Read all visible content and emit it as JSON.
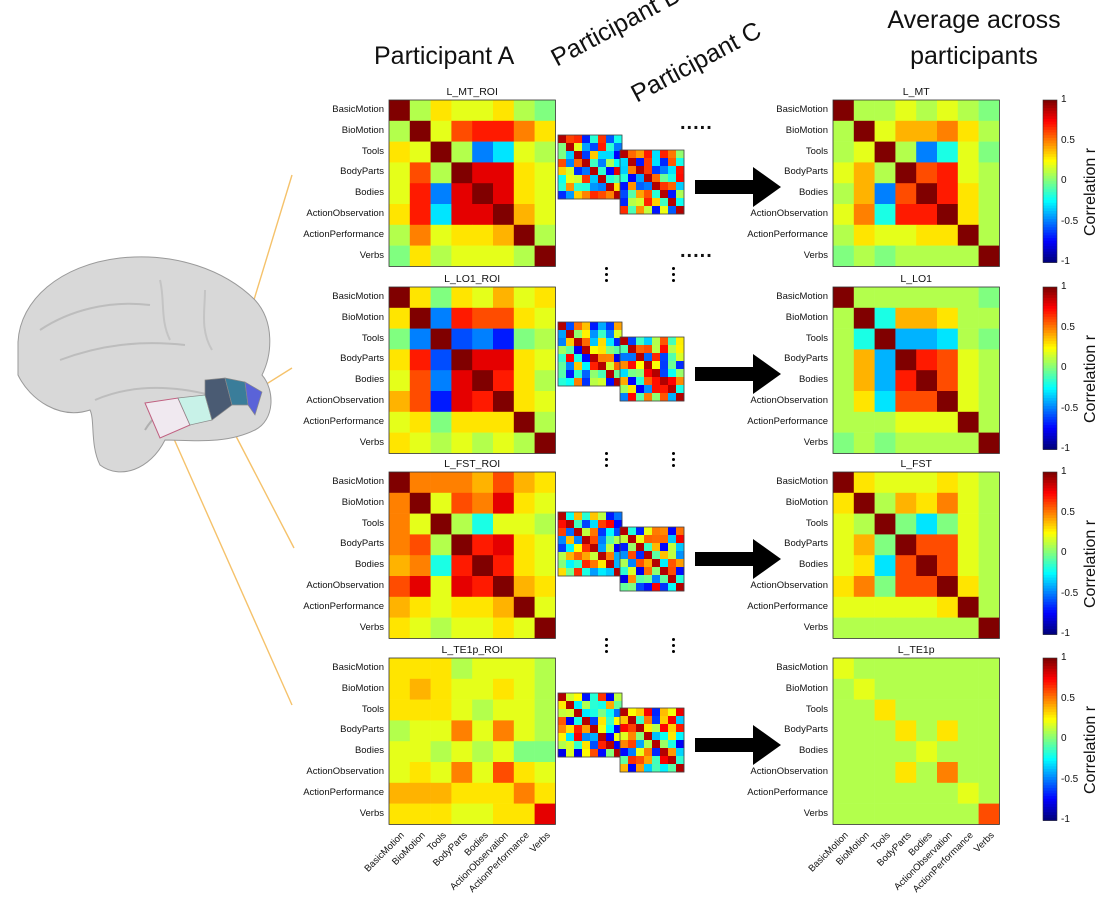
{
  "headers": {
    "participant_a": "Participant A",
    "participant_b": "Participant B",
    "participant_c": "Participant C",
    "average_line1": "Average across",
    "average_line2": "participants",
    "dots": "....."
  },
  "conditions": [
    "BasicMotion",
    "BioMotion",
    "Tools",
    "BodyParts",
    "Bodies",
    "ActionObservation",
    "ActionPerformance",
    "Verbs"
  ],
  "colorbar": {
    "label": "Correlation r",
    "ticks": [
      "1",
      "0.5",
      "0",
      "-0.5",
      "-1"
    ]
  },
  "colors": {
    "arrow": "#000000",
    "roi_line": "#f5c26b",
    "brain": "#d9d9d9"
  },
  "rows": [
    {
      "roi_title": "L_MT_ROI",
      "avg_title": "L_MT",
      "participant_a": [
        [
          1.0,
          0.1,
          0.3,
          0.2,
          0.2,
          0.3,
          0.1,
          0.0
        ],
        [
          0.1,
          1.0,
          0.2,
          0.6,
          0.7,
          0.7,
          0.5,
          0.3
        ],
        [
          0.3,
          0.2,
          1.0,
          0.1,
          -0.5,
          -0.3,
          0.2,
          0.1
        ],
        [
          0.2,
          0.6,
          0.1,
          1.0,
          0.8,
          0.8,
          0.3,
          0.2
        ],
        [
          0.2,
          0.7,
          -0.5,
          0.8,
          1.0,
          0.8,
          0.3,
          0.2
        ],
        [
          0.3,
          0.7,
          -0.3,
          0.8,
          0.8,
          1.0,
          0.4,
          0.2
        ],
        [
          0.1,
          0.5,
          0.2,
          0.3,
          0.3,
          0.4,
          1.0,
          0.1
        ],
        [
          0.0,
          0.3,
          0.1,
          0.2,
          0.2,
          0.2,
          0.1,
          1.0
        ]
      ],
      "average": [
        [
          1.0,
          0.1,
          0.1,
          0.2,
          0.1,
          0.2,
          0.1,
          0.0
        ],
        [
          0.1,
          1.0,
          0.2,
          0.4,
          0.4,
          0.5,
          0.3,
          0.1
        ],
        [
          0.1,
          0.2,
          1.0,
          0.1,
          -0.5,
          -0.2,
          0.2,
          0.0
        ],
        [
          0.2,
          0.4,
          0.1,
          1.0,
          0.6,
          0.7,
          0.2,
          0.1
        ],
        [
          0.1,
          0.4,
          -0.5,
          0.6,
          1.0,
          0.7,
          0.3,
          0.1
        ],
        [
          0.2,
          0.5,
          -0.2,
          0.7,
          0.7,
          1.0,
          0.3,
          0.1
        ],
        [
          0.1,
          0.3,
          0.2,
          0.2,
          0.3,
          0.3,
          1.0,
          0.1
        ],
        [
          0.0,
          0.1,
          0.0,
          0.1,
          0.1,
          0.1,
          0.1,
          1.0
        ]
      ]
    },
    {
      "roi_title": "L_LO1_ROI",
      "avg_title": "L_LO1",
      "participant_a": [
        [
          1.0,
          0.3,
          0.0,
          0.3,
          0.2,
          0.4,
          0.2,
          0.3
        ],
        [
          0.3,
          1.0,
          -0.5,
          0.7,
          0.6,
          0.6,
          0.3,
          0.2
        ],
        [
          0.0,
          -0.5,
          1.0,
          -0.6,
          -0.5,
          -0.7,
          0.0,
          0.1
        ],
        [
          0.3,
          0.7,
          -0.6,
          1.0,
          0.8,
          0.8,
          0.3,
          0.2
        ],
        [
          0.2,
          0.6,
          -0.5,
          0.8,
          1.0,
          0.7,
          0.3,
          0.1
        ],
        [
          0.4,
          0.6,
          -0.7,
          0.8,
          0.7,
          1.0,
          0.3,
          0.2
        ],
        [
          0.2,
          0.3,
          0.0,
          0.3,
          0.3,
          0.3,
          1.0,
          0.1
        ],
        [
          0.3,
          0.2,
          0.1,
          0.2,
          0.1,
          0.2,
          0.1,
          1.0
        ]
      ],
      "average": [
        [
          1.0,
          0.1,
          0.1,
          0.1,
          0.1,
          0.1,
          0.1,
          0.0
        ],
        [
          0.1,
          1.0,
          -0.2,
          0.4,
          0.4,
          0.3,
          0.1,
          0.1
        ],
        [
          0.1,
          -0.2,
          1.0,
          -0.4,
          -0.4,
          -0.3,
          0.1,
          0.0
        ],
        [
          0.1,
          0.4,
          -0.4,
          1.0,
          0.7,
          0.6,
          0.2,
          0.1
        ],
        [
          0.1,
          0.4,
          -0.4,
          0.7,
          1.0,
          0.6,
          0.2,
          0.1
        ],
        [
          0.1,
          0.3,
          -0.3,
          0.6,
          0.6,
          1.0,
          0.2,
          0.1
        ],
        [
          0.1,
          0.1,
          0.1,
          0.2,
          0.2,
          0.2,
          1.0,
          0.1
        ],
        [
          0.0,
          0.1,
          0.0,
          0.1,
          0.1,
          0.1,
          0.1,
          1.0
        ]
      ]
    },
    {
      "roi_title": "L_FST_ROI",
      "avg_title": "L_FST",
      "participant_a": [
        [
          1.0,
          0.5,
          0.5,
          0.5,
          0.4,
          0.6,
          0.4,
          0.3
        ],
        [
          0.5,
          1.0,
          0.2,
          0.6,
          0.5,
          0.8,
          0.3,
          0.2
        ],
        [
          0.5,
          0.2,
          1.0,
          0.1,
          -0.2,
          0.2,
          0.2,
          0.1
        ],
        [
          0.5,
          0.6,
          0.1,
          1.0,
          0.7,
          0.8,
          0.3,
          0.2
        ],
        [
          0.4,
          0.5,
          -0.2,
          0.7,
          1.0,
          0.7,
          0.3,
          0.2
        ],
        [
          0.6,
          0.8,
          0.2,
          0.8,
          0.7,
          1.0,
          0.4,
          0.3
        ],
        [
          0.4,
          0.3,
          0.2,
          0.3,
          0.3,
          0.4,
          1.0,
          0.2
        ],
        [
          0.3,
          0.2,
          0.1,
          0.2,
          0.2,
          0.3,
          0.2,
          1.0
        ]
      ],
      "average": [
        [
          1.0,
          0.3,
          0.2,
          0.2,
          0.2,
          0.3,
          0.2,
          0.1
        ],
        [
          0.3,
          1.0,
          0.1,
          0.4,
          0.3,
          0.5,
          0.2,
          0.1
        ],
        [
          0.2,
          0.1,
          1.0,
          0.0,
          -0.3,
          0.0,
          0.2,
          0.1
        ],
        [
          0.2,
          0.4,
          0.0,
          1.0,
          0.6,
          0.6,
          0.2,
          0.1
        ],
        [
          0.2,
          0.3,
          -0.3,
          0.6,
          1.0,
          0.6,
          0.2,
          0.1
        ],
        [
          0.3,
          0.5,
          0.0,
          0.6,
          0.6,
          1.0,
          0.3,
          0.1
        ],
        [
          0.2,
          0.2,
          0.2,
          0.2,
          0.2,
          0.3,
          1.0,
          0.1
        ],
        [
          0.1,
          0.1,
          0.1,
          0.1,
          0.1,
          0.1,
          0.1,
          1.0
        ]
      ]
    },
    {
      "roi_title": "L_TE1p_ROI",
      "avg_title": "L_TE1p",
      "participant_a": [
        [
          0.3,
          0.3,
          0.3,
          0.1,
          0.2,
          0.2,
          0.2,
          0.1
        ],
        [
          0.3,
          0.4,
          0.3,
          0.2,
          0.2,
          0.3,
          0.2,
          0.1
        ],
        [
          0.3,
          0.3,
          0.3,
          0.2,
          0.1,
          0.2,
          0.2,
          0.1
        ],
        [
          0.1,
          0.2,
          0.2,
          0.5,
          0.2,
          0.5,
          0.2,
          0.1
        ],
        [
          0.2,
          0.2,
          0.1,
          0.2,
          0.1,
          0.2,
          0.0,
          0.0
        ],
        [
          0.2,
          0.3,
          0.2,
          0.5,
          0.2,
          0.6,
          0.3,
          0.2
        ],
        [
          0.4,
          0.4,
          0.4,
          0.3,
          0.3,
          0.3,
          0.5,
          0.3
        ],
        [
          0.3,
          0.3,
          0.3,
          0.2,
          0.2,
          0.3,
          0.3,
          0.8
        ]
      ],
      "average": [
        [
          0.2,
          0.1,
          0.1,
          0.1,
          0.1,
          0.1,
          0.1,
          0.1
        ],
        [
          0.1,
          0.2,
          0.1,
          0.1,
          0.1,
          0.1,
          0.1,
          0.1
        ],
        [
          0.1,
          0.1,
          0.3,
          0.1,
          0.1,
          0.1,
          0.1,
          0.1
        ],
        [
          0.1,
          0.1,
          0.1,
          0.3,
          0.1,
          0.3,
          0.1,
          0.1
        ],
        [
          0.1,
          0.1,
          0.1,
          0.1,
          0.2,
          0.1,
          0.1,
          0.1
        ],
        [
          0.1,
          0.1,
          0.1,
          0.3,
          0.1,
          0.5,
          0.1,
          0.1
        ],
        [
          0.1,
          0.1,
          0.1,
          0.1,
          0.1,
          0.1,
          0.2,
          0.1
        ],
        [
          0.1,
          0.1,
          0.1,
          0.1,
          0.1,
          0.1,
          0.1,
          0.6
        ]
      ]
    }
  ]
}
